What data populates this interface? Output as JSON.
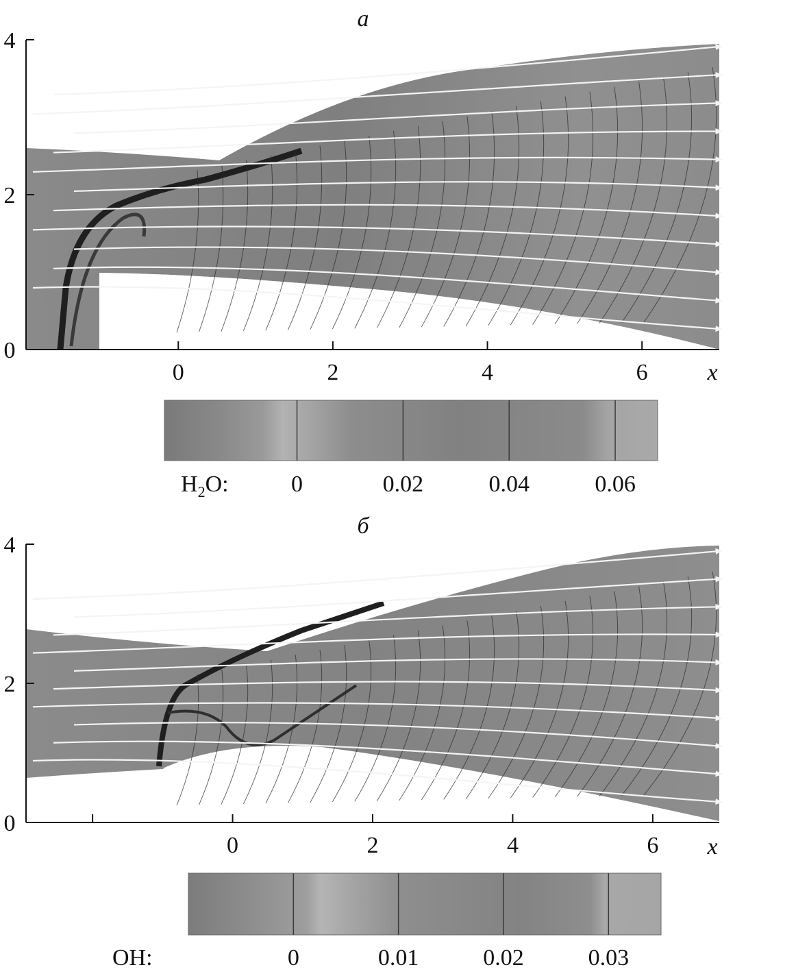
{
  "chart_data": [
    {
      "type": "heatmap",
      "title": "a",
      "xlabel": "x",
      "ylabel": "",
      "xlim": [
        -1.97,
        7.0
      ],
      "ylim": [
        0,
        4
      ],
      "x_ticks": [
        0,
        2,
        4,
        6
      ],
      "y_ticks": [
        0,
        2,
        4
      ],
      "grid": false,
      "field": "H2O mass fraction (contours + streamlines)",
      "colorbar": {
        "label_main": "H",
        "label_sub": "2",
        "label_tail": "O:",
        "range": [
          -0.025,
          0.068
        ],
        "ticks": [
          0,
          0.02,
          0.04,
          0.06
        ],
        "tick_labels": [
          "0",
          "0.02",
          "0.04",
          "0.06"
        ]
      },
      "streamlines": 11,
      "colors": {
        "field": "#8f8f8f",
        "contour": "#2a2a2a",
        "streamline": "#f4f4f4"
      }
    },
    {
      "type": "heatmap",
      "title": "б",
      "xlabel": "x",
      "ylabel": "",
      "xlim": [
        -2.95,
        6.95
      ],
      "ylim": [
        0,
        4
      ],
      "x_ticks": [
        -2,
        0,
        2,
        4,
        6
      ],
      "x_tick_labels": [
        "",
        "0",
        "2",
        "4",
        "6"
      ],
      "y_ticks": [
        0,
        2,
        4
      ],
      "grid": false,
      "field": "OH mass fraction (contours + streamlines)",
      "colorbar": {
        "label_main": "OH:",
        "label_sub": "",
        "label_tail": "",
        "range": [
          -0.01,
          0.035
        ],
        "ticks": [
          0,
          0.01,
          0.02,
          0.03
        ],
        "tick_labels": [
          "0",
          "0.01",
          "0.02",
          "0.03"
        ]
      },
      "streamlines": 10,
      "colors": {
        "field": "#8f8f8f",
        "contour": "#2a2a2a",
        "streamline": "#f4f4f4"
      }
    }
  ]
}
